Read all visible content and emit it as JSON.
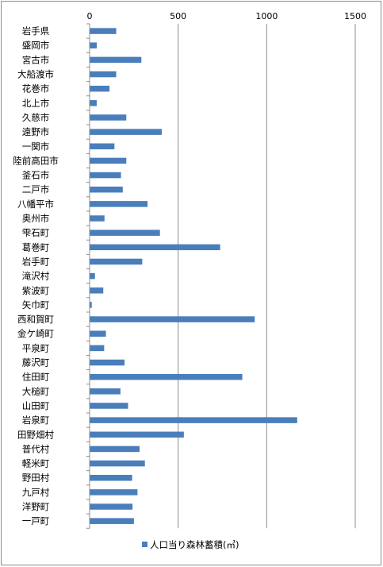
{
  "chart_data": {
    "type": "bar",
    "orientation": "horizontal",
    "categories": [
      "岩手県",
      "盛岡市",
      "宮古市",
      "大船渡市",
      "花巻市",
      "北上市",
      "久慈市",
      "遠野市",
      "一関市",
      "陸前高田市",
      "釜石市",
      "二戸市",
      "八幡平市",
      "奥州市",
      "雫石町",
      "葛巻町",
      "岩手町",
      "滝沢村",
      "紫波町",
      "矢巾町",
      "西和賀町",
      "金ケ崎町",
      "平泉町",
      "藤沢町",
      "住田町",
      "大槌町",
      "山田町",
      "岩泉町",
      "田野畑村",
      "普代村",
      "軽米町",
      "野田村",
      "九戸村",
      "洋野町",
      "一戸町"
    ],
    "series": [
      {
        "name": "人口当り森林蓄積(㎥)",
        "color": "#4a7ebb",
        "values": [
          148,
          38,
          290,
          148,
          110,
          38,
          205,
          405,
          138,
          205,
          175,
          185,
          325,
          82,
          395,
          735,
          295,
          28,
          75,
          10,
          930,
          90,
          80,
          195,
          860,
          172,
          215,
          1170,
          530,
          280,
          310,
          238,
          268,
          240,
          248
        ]
      }
    ],
    "xlim": [
      0,
      1500
    ],
    "xticks": [
      0,
      500,
      1000,
      1500
    ],
    "xlabel": "",
    "ylabel": "",
    "title": "",
    "grid": true,
    "legend_position": "bottom"
  }
}
